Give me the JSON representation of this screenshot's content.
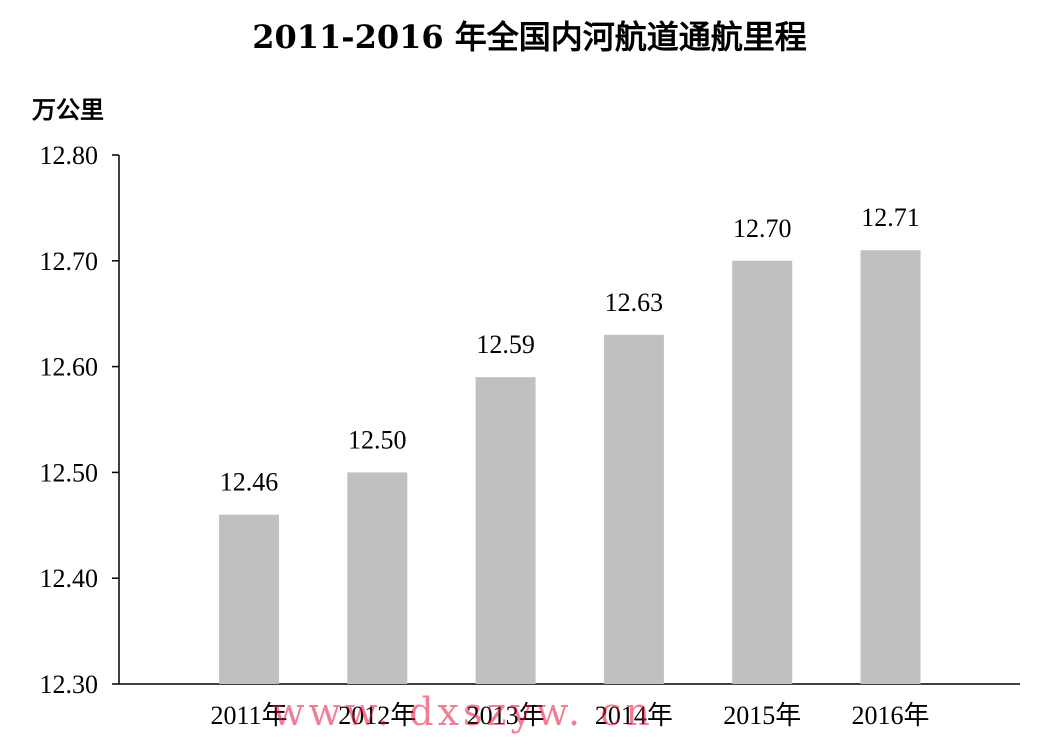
{
  "chart_data": {
    "type": "bar",
    "title": "2011-2016 年全国内河航道通航里程",
    "ylabel": "万公里",
    "xlabel": "",
    "categories": [
      "2011年",
      "2012年",
      "2013年",
      "2014年",
      "2015年",
      "2016年"
    ],
    "values": [
      12.46,
      12.5,
      12.59,
      12.63,
      12.7,
      12.71
    ],
    "value_labels": [
      "12.46",
      "12.50",
      "12.59",
      "12.63",
      "12.70",
      "12.71"
    ],
    "ylim": [
      12.3,
      12.8
    ],
    "yticks": [
      "12.30",
      "12.40",
      "12.50",
      "12.60",
      "12.70",
      "12.80"
    ],
    "grid": false,
    "legend": "none",
    "bar_color": "#c0c0c0"
  },
  "watermark": "www. dxszyw. cn"
}
